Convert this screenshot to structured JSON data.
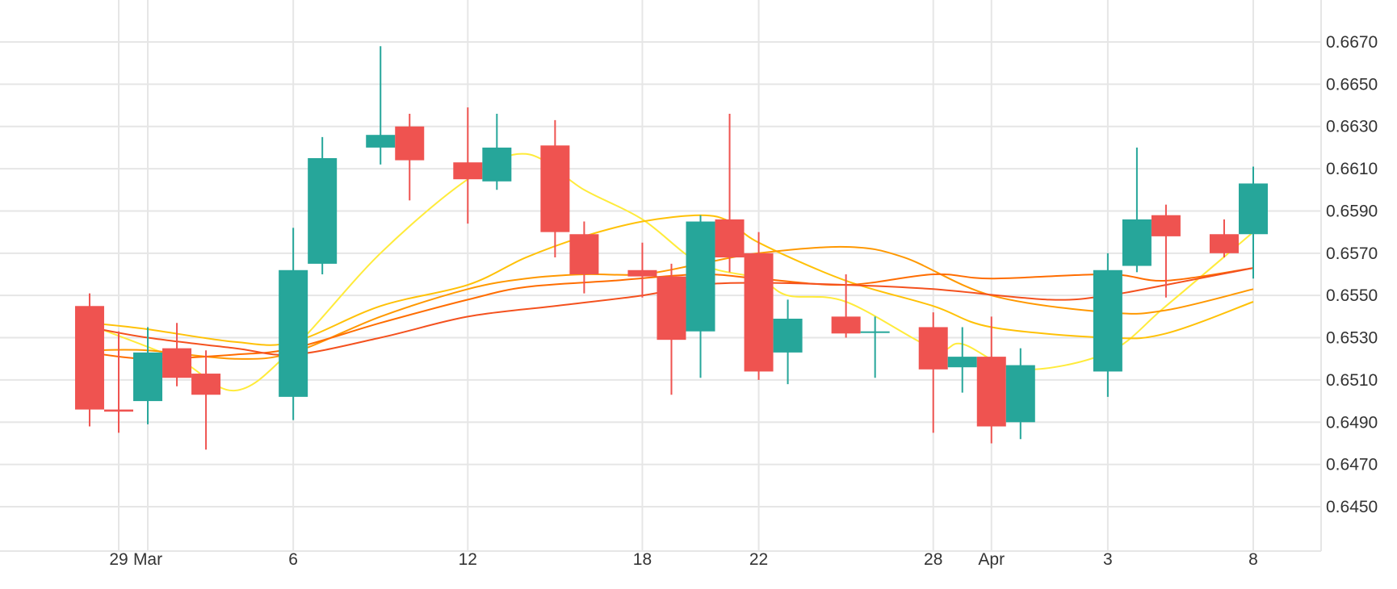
{
  "chart_data": {
    "type": "candlestick",
    "colors": {
      "up": "#26a69a",
      "down": "#ef5350",
      "grid": "#e6e6e6",
      "text": "#333333"
    },
    "y_ticks": [
      "0.6670",
      "0.6650",
      "0.6630",
      "0.6610",
      "0.6590",
      "0.6570",
      "0.6550",
      "0.6530",
      "0.6510",
      "0.6490",
      "0.6470",
      "0.6450"
    ],
    "y_tick_values": [
      0.667,
      0.665,
      0.663,
      0.661,
      0.659,
      0.657,
      0.655,
      0.653,
      0.651,
      0.649,
      0.647,
      0.645
    ],
    "ylim": [
      0.6432,
      0.669
    ],
    "x_ticks": [
      {
        "label": "29",
        "date": "2023-02-28"
      },
      {
        "label": "Mar",
        "date": "2023-03-01"
      },
      {
        "label": "6",
        "date": "2023-03-06"
      },
      {
        "label": "12",
        "date": "2023-03-12"
      },
      {
        "label": "18",
        "date": "2023-03-18"
      },
      {
        "label": "22",
        "date": "2023-03-22"
      },
      {
        "label": "28",
        "date": "2023-03-28"
      },
      {
        "label": "Apr",
        "date": "2023-03-30"
      },
      {
        "label": "3",
        "date": "2023-04-03"
      },
      {
        "label": "8",
        "date": "2023-04-08"
      }
    ],
    "candles": [
      {
        "date": "2023-02-27",
        "open": 0.6545,
        "high": 0.6551,
        "low": 0.6488,
        "close": 0.6496
      },
      {
        "date": "2023-02-28",
        "open": 0.6496,
        "high": 0.6533,
        "low": 0.6485,
        "close": 0.6495
      },
      {
        "date": "2023-03-01",
        "open": 0.65,
        "high": 0.6535,
        "low": 0.6489,
        "close": 0.6523
      },
      {
        "date": "2023-03-02",
        "open": 0.6525,
        "high": 0.6537,
        "low": 0.6507,
        "close": 0.6511
      },
      {
        "date": "2023-03-03",
        "open": 0.6513,
        "high": 0.6524,
        "low": 0.6477,
        "close": 0.6503
      },
      {
        "date": "2023-03-06",
        "open": 0.6502,
        "high": 0.6582,
        "low": 0.6491,
        "close": 0.6562
      },
      {
        "date": "2023-03-07",
        "open": 0.6565,
        "high": 0.6625,
        "low": 0.656,
        "close": 0.6615
      },
      {
        "date": "2023-03-09",
        "open": 0.662,
        "high": 0.6668,
        "low": 0.6612,
        "close": 0.6626
      },
      {
        "date": "2023-03-10",
        "open": 0.663,
        "high": 0.6636,
        "low": 0.6595,
        "close": 0.6614
      },
      {
        "date": "2023-03-12",
        "open": 0.6613,
        "high": 0.6639,
        "low": 0.6584,
        "close": 0.6605
      },
      {
        "date": "2023-03-13",
        "open": 0.6604,
        "high": 0.6636,
        "low": 0.66,
        "close": 0.662
      },
      {
        "date": "2023-03-15",
        "open": 0.6621,
        "high": 0.6633,
        "low": 0.6568,
        "close": 0.658
      },
      {
        "date": "2023-03-16",
        "open": 0.6579,
        "high": 0.6585,
        "low": 0.6551,
        "close": 0.656
      },
      {
        "date": "2023-03-18",
        "open": 0.6562,
        "high": 0.6575,
        "low": 0.6549,
        "close": 0.6559
      },
      {
        "date": "2023-03-19",
        "open": 0.6559,
        "high": 0.6565,
        "low": 0.6503,
        "close": 0.6529
      },
      {
        "date": "2023-03-20",
        "open": 0.6533,
        "high": 0.6588,
        "low": 0.6511,
        "close": 0.6585
      },
      {
        "date": "2023-03-21",
        "open": 0.6586,
        "high": 0.6636,
        "low": 0.6561,
        "close": 0.6568
      },
      {
        "date": "2023-03-22",
        "open": 0.657,
        "high": 0.658,
        "low": 0.651,
        "close": 0.6514
      },
      {
        "date": "2023-03-23",
        "open": 0.6523,
        "high": 0.6548,
        "low": 0.6508,
        "close": 0.6539
      },
      {
        "date": "2023-03-25",
        "open": 0.654,
        "high": 0.656,
        "low": 0.653,
        "close": 0.6532
      },
      {
        "date": "2023-03-26",
        "open": 0.6533,
        "high": 0.654,
        "low": 0.6511,
        "close": 0.6533
      },
      {
        "date": "2023-03-28",
        "open": 0.6535,
        "high": 0.6542,
        "low": 0.6485,
        "close": 0.6515
      },
      {
        "date": "2023-03-29",
        "open": 0.6516,
        "high": 0.6535,
        "low": 0.6504,
        "close": 0.6521
      },
      {
        "date": "2023-03-30",
        "open": 0.6521,
        "high": 0.654,
        "low": 0.648,
        "close": 0.6488
      },
      {
        "date": "2023-03-31",
        "open": 0.649,
        "high": 0.6525,
        "low": 0.6482,
        "close": 0.6517
      },
      {
        "date": "2023-04-03",
        "open": 0.6514,
        "high": 0.657,
        "low": 0.6502,
        "close": 0.6562
      },
      {
        "date": "2023-04-04",
        "open": 0.6564,
        "high": 0.662,
        "low": 0.6561,
        "close": 0.6586
      },
      {
        "date": "2023-04-05",
        "open": 0.6588,
        "high": 0.6593,
        "low": 0.6549,
        "close": 0.6578
      },
      {
        "date": "2023-04-07",
        "open": 0.6579,
        "high": 0.6586,
        "low": 0.6568,
        "close": 0.657
      },
      {
        "date": "2023-04-08",
        "open": 0.6579,
        "high": 0.6611,
        "low": 0.6558,
        "close": 0.6603
      }
    ],
    "series": [
      {
        "color": "#ffeb3b",
        "points": [
          [
            "2023-02-27",
            0.6536
          ],
          [
            "2023-03-02",
            0.652
          ],
          [
            "2023-03-04",
            0.6505
          ],
          [
            "2023-03-06",
            0.6525
          ],
          [
            "2023-03-09",
            0.657
          ],
          [
            "2023-03-12",
            0.6605
          ],
          [
            "2023-03-14",
            0.6617
          ],
          [
            "2023-03-16",
            0.66
          ],
          [
            "2023-03-18",
            0.6586
          ],
          [
            "2023-03-20",
            0.6565
          ],
          [
            "2023-03-22",
            0.6558
          ],
          [
            "2023-03-23",
            0.655
          ],
          [
            "2023-03-25",
            0.6547
          ],
          [
            "2023-03-28",
            0.6525
          ],
          [
            "2023-03-29",
            0.6527
          ],
          [
            "2023-03-31",
            0.6515
          ],
          [
            "2023-04-03",
            0.6523
          ],
          [
            "2023-04-05",
            0.6545
          ],
          [
            "2023-04-08",
            0.658
          ]
        ]
      },
      {
        "color": "#ffc107",
        "points": [
          [
            "2023-02-27",
            0.6537
          ],
          [
            "2023-03-01",
            0.6534
          ],
          [
            "2023-03-04",
            0.6528
          ],
          [
            "2023-03-06",
            0.6528
          ],
          [
            "2023-03-09",
            0.6545
          ],
          [
            "2023-03-12",
            0.6555
          ],
          [
            "2023-03-14",
            0.6568
          ],
          [
            "2023-03-16",
            0.6578
          ],
          [
            "2023-03-18",
            0.6585
          ],
          [
            "2023-03-20",
            0.6588
          ],
          [
            "2023-03-21",
            0.6585
          ],
          [
            "2023-03-22",
            0.6575
          ],
          [
            "2023-03-25",
            0.6557
          ],
          [
            "2023-03-28",
            0.6545
          ],
          [
            "2023-03-30",
            0.6535
          ],
          [
            "2023-04-03",
            0.653
          ],
          [
            "2023-04-05",
            0.6532
          ],
          [
            "2023-04-08",
            0.6547
          ]
        ]
      },
      {
        "color": "#ff9800",
        "points": [
          [
            "2023-02-27",
            0.6524
          ],
          [
            "2023-03-01",
            0.6524
          ],
          [
            "2023-03-04",
            0.652
          ],
          [
            "2023-03-06",
            0.6523
          ],
          [
            "2023-03-09",
            0.654
          ],
          [
            "2023-03-12",
            0.6553
          ],
          [
            "2023-03-14",
            0.6558
          ],
          [
            "2023-03-16",
            0.656
          ],
          [
            "2023-03-18",
            0.656
          ],
          [
            "2023-03-20",
            0.6565
          ],
          [
            "2023-03-22",
            0.657
          ],
          [
            "2023-03-25",
            0.6573
          ],
          [
            "2023-03-27",
            0.6568
          ],
          [
            "2023-03-30",
            0.655
          ],
          [
            "2023-04-03",
            0.6542
          ],
          [
            "2023-04-05",
            0.6543
          ],
          [
            "2023-04-08",
            0.6553
          ]
        ]
      },
      {
        "color": "#ff6d00",
        "points": [
          [
            "2023-02-27",
            0.6523
          ],
          [
            "2023-03-01",
            0.652
          ],
          [
            "2023-03-04",
            0.6522
          ],
          [
            "2023-03-06",
            0.6525
          ],
          [
            "2023-03-09",
            0.6537
          ],
          [
            "2023-03-12",
            0.6548
          ],
          [
            "2023-03-14",
            0.6554
          ],
          [
            "2023-03-17",
            0.6557
          ],
          [
            "2023-03-20",
            0.656
          ],
          [
            "2023-03-22",
            0.6558
          ],
          [
            "2023-03-25",
            0.6555
          ],
          [
            "2023-03-28",
            0.656
          ],
          [
            "2023-03-30",
            0.6558
          ],
          [
            "2023-04-03",
            0.656
          ],
          [
            "2023-04-05",
            0.6557
          ],
          [
            "2023-04-08",
            0.6563
          ]
        ]
      },
      {
        "color": "#f4511e",
        "points": [
          [
            "2023-02-27",
            0.6535
          ],
          [
            "2023-03-01",
            0.653
          ],
          [
            "2023-03-04",
            0.6525
          ],
          [
            "2023-03-06",
            0.6522
          ],
          [
            "2023-03-09",
            0.653
          ],
          [
            "2023-03-12",
            0.654
          ],
          [
            "2023-03-15",
            0.6545
          ],
          [
            "2023-03-18",
            0.655
          ],
          [
            "2023-03-20",
            0.6555
          ],
          [
            "2023-03-22",
            0.6556
          ],
          [
            "2023-03-25",
            0.6555
          ],
          [
            "2023-03-28",
            0.6553
          ],
          [
            "2023-04-01",
            0.6548
          ],
          [
            "2023-04-03",
            0.655
          ],
          [
            "2023-04-05",
            0.6555
          ],
          [
            "2023-04-08",
            0.6563
          ]
        ]
      }
    ]
  }
}
